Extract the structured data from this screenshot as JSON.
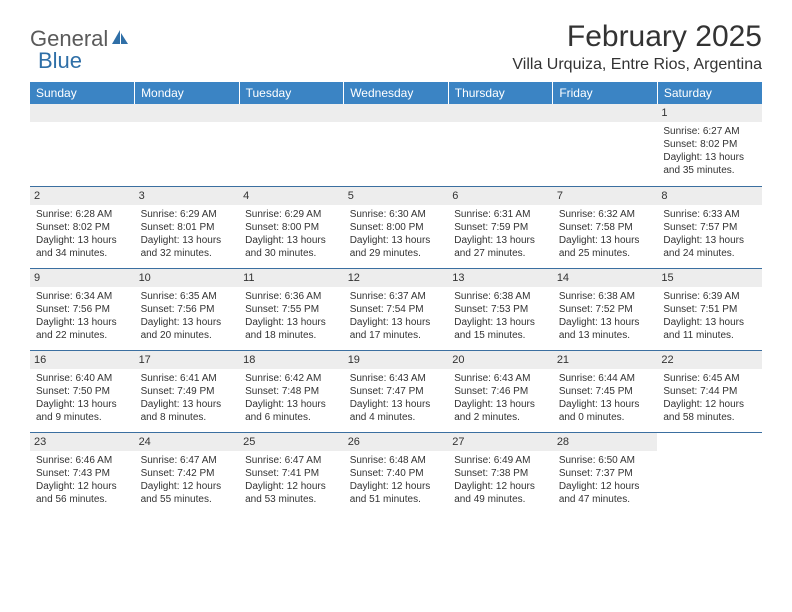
{
  "logo": {
    "part1": "General",
    "part2": "Blue"
  },
  "title": "February 2025",
  "location": "Villa Urquiza, Entre Rios, Argentina",
  "colors": {
    "header_bg": "#3b84c4",
    "header_text": "#ffffff",
    "daynum_bg": "#ededed",
    "border": "#3b6fa0",
    "text": "#333333",
    "logo_gray": "#5a5a5a",
    "logo_blue": "#2f6fa7"
  },
  "fonts": {
    "title_pt": 30,
    "location_pt": 16,
    "header_pt": 12,
    "daynum_pt": 11,
    "body_pt": 10
  },
  "weekdays": [
    "Sunday",
    "Monday",
    "Tuesday",
    "Wednesday",
    "Thursday",
    "Friday",
    "Saturday"
  ],
  "weeks": [
    [
      null,
      null,
      null,
      null,
      null,
      null,
      {
        "n": "1",
        "sr": "Sunrise: 6:27 AM",
        "ss": "Sunset: 8:02 PM",
        "dl1": "Daylight: 13 hours",
        "dl2": "and 35 minutes."
      }
    ],
    [
      {
        "n": "2",
        "sr": "Sunrise: 6:28 AM",
        "ss": "Sunset: 8:02 PM",
        "dl1": "Daylight: 13 hours",
        "dl2": "and 34 minutes."
      },
      {
        "n": "3",
        "sr": "Sunrise: 6:29 AM",
        "ss": "Sunset: 8:01 PM",
        "dl1": "Daylight: 13 hours",
        "dl2": "and 32 minutes."
      },
      {
        "n": "4",
        "sr": "Sunrise: 6:29 AM",
        "ss": "Sunset: 8:00 PM",
        "dl1": "Daylight: 13 hours",
        "dl2": "and 30 minutes."
      },
      {
        "n": "5",
        "sr": "Sunrise: 6:30 AM",
        "ss": "Sunset: 8:00 PM",
        "dl1": "Daylight: 13 hours",
        "dl2": "and 29 minutes."
      },
      {
        "n": "6",
        "sr": "Sunrise: 6:31 AM",
        "ss": "Sunset: 7:59 PM",
        "dl1": "Daylight: 13 hours",
        "dl2": "and 27 minutes."
      },
      {
        "n": "7",
        "sr": "Sunrise: 6:32 AM",
        "ss": "Sunset: 7:58 PM",
        "dl1": "Daylight: 13 hours",
        "dl2": "and 25 minutes."
      },
      {
        "n": "8",
        "sr": "Sunrise: 6:33 AM",
        "ss": "Sunset: 7:57 PM",
        "dl1": "Daylight: 13 hours",
        "dl2": "and 24 minutes."
      }
    ],
    [
      {
        "n": "9",
        "sr": "Sunrise: 6:34 AM",
        "ss": "Sunset: 7:56 PM",
        "dl1": "Daylight: 13 hours",
        "dl2": "and 22 minutes."
      },
      {
        "n": "10",
        "sr": "Sunrise: 6:35 AM",
        "ss": "Sunset: 7:56 PM",
        "dl1": "Daylight: 13 hours",
        "dl2": "and 20 minutes."
      },
      {
        "n": "11",
        "sr": "Sunrise: 6:36 AM",
        "ss": "Sunset: 7:55 PM",
        "dl1": "Daylight: 13 hours",
        "dl2": "and 18 minutes."
      },
      {
        "n": "12",
        "sr": "Sunrise: 6:37 AM",
        "ss": "Sunset: 7:54 PM",
        "dl1": "Daylight: 13 hours",
        "dl2": "and 17 minutes."
      },
      {
        "n": "13",
        "sr": "Sunrise: 6:38 AM",
        "ss": "Sunset: 7:53 PM",
        "dl1": "Daylight: 13 hours",
        "dl2": "and 15 minutes."
      },
      {
        "n": "14",
        "sr": "Sunrise: 6:38 AM",
        "ss": "Sunset: 7:52 PM",
        "dl1": "Daylight: 13 hours",
        "dl2": "and 13 minutes."
      },
      {
        "n": "15",
        "sr": "Sunrise: 6:39 AM",
        "ss": "Sunset: 7:51 PM",
        "dl1": "Daylight: 13 hours",
        "dl2": "and 11 minutes."
      }
    ],
    [
      {
        "n": "16",
        "sr": "Sunrise: 6:40 AM",
        "ss": "Sunset: 7:50 PM",
        "dl1": "Daylight: 13 hours",
        "dl2": "and 9 minutes."
      },
      {
        "n": "17",
        "sr": "Sunrise: 6:41 AM",
        "ss": "Sunset: 7:49 PM",
        "dl1": "Daylight: 13 hours",
        "dl2": "and 8 minutes."
      },
      {
        "n": "18",
        "sr": "Sunrise: 6:42 AM",
        "ss": "Sunset: 7:48 PM",
        "dl1": "Daylight: 13 hours",
        "dl2": "and 6 minutes."
      },
      {
        "n": "19",
        "sr": "Sunrise: 6:43 AM",
        "ss": "Sunset: 7:47 PM",
        "dl1": "Daylight: 13 hours",
        "dl2": "and 4 minutes."
      },
      {
        "n": "20",
        "sr": "Sunrise: 6:43 AM",
        "ss": "Sunset: 7:46 PM",
        "dl1": "Daylight: 13 hours",
        "dl2": "and 2 minutes."
      },
      {
        "n": "21",
        "sr": "Sunrise: 6:44 AM",
        "ss": "Sunset: 7:45 PM",
        "dl1": "Daylight: 13 hours",
        "dl2": "and 0 minutes."
      },
      {
        "n": "22",
        "sr": "Sunrise: 6:45 AM",
        "ss": "Sunset: 7:44 PM",
        "dl1": "Daylight: 12 hours",
        "dl2": "and 58 minutes."
      }
    ],
    [
      {
        "n": "23",
        "sr": "Sunrise: 6:46 AM",
        "ss": "Sunset: 7:43 PM",
        "dl1": "Daylight: 12 hours",
        "dl2": "and 56 minutes."
      },
      {
        "n": "24",
        "sr": "Sunrise: 6:47 AM",
        "ss": "Sunset: 7:42 PM",
        "dl1": "Daylight: 12 hours",
        "dl2": "and 55 minutes."
      },
      {
        "n": "25",
        "sr": "Sunrise: 6:47 AM",
        "ss": "Sunset: 7:41 PM",
        "dl1": "Daylight: 12 hours",
        "dl2": "and 53 minutes."
      },
      {
        "n": "26",
        "sr": "Sunrise: 6:48 AM",
        "ss": "Sunset: 7:40 PM",
        "dl1": "Daylight: 12 hours",
        "dl2": "and 51 minutes."
      },
      {
        "n": "27",
        "sr": "Sunrise: 6:49 AM",
        "ss": "Sunset: 7:38 PM",
        "dl1": "Daylight: 12 hours",
        "dl2": "and 49 minutes."
      },
      {
        "n": "28",
        "sr": "Sunrise: 6:50 AM",
        "ss": "Sunset: 7:37 PM",
        "dl1": "Daylight: 12 hours",
        "dl2": "and 47 minutes."
      },
      null
    ]
  ]
}
